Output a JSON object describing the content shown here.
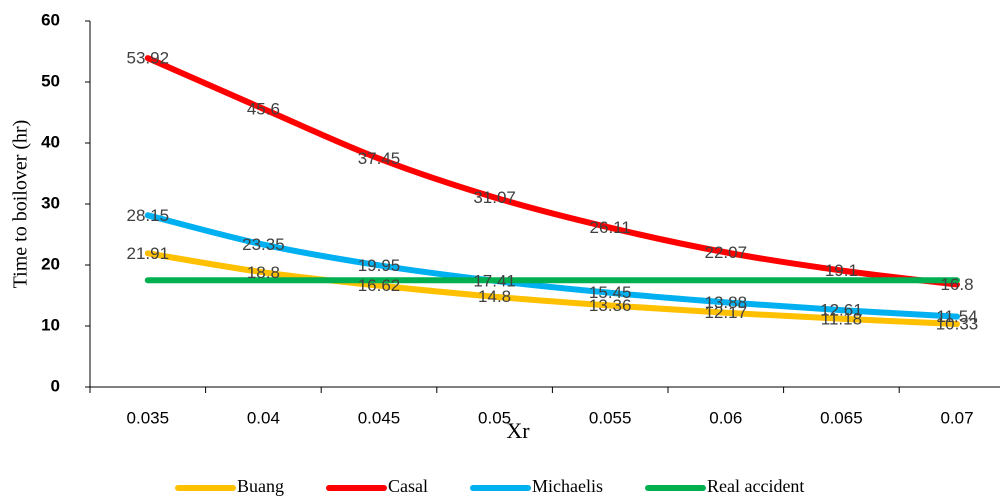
{
  "chart_data": {
    "type": "line",
    "x_label": "Xr",
    "y_label": "Time to boilover (hr)",
    "categories": [
      "0.035",
      "0.04",
      "0.045",
      "0.05",
      "0.055",
      "0.06",
      "0.065",
      "0.07"
    ],
    "series": [
      {
        "name": "Buang",
        "color": "#ffc000",
        "values": [
          21.91,
          18.8,
          16.62,
          14.8,
          13.36,
          12.17,
          11.18,
          10.33
        ],
        "data_labels": true
      },
      {
        "name": "Casal",
        "color": "#ff0000",
        "values": [
          53.92,
          45.6,
          37.45,
          31.07,
          26.11,
          22.07,
          19.1,
          16.8
        ],
        "data_labels": true
      },
      {
        "name": "Michaelis",
        "color": "#00b0f0",
        "values": [
          28.15,
          23.35,
          19.95,
          17.41,
          15.45,
          13.88,
          12.61,
          11.54
        ],
        "data_labels": true
      },
      {
        "name": "Real accident",
        "color": "#00b050",
        "values": [
          17.5,
          17.5,
          17.5,
          17.5,
          17.5,
          17.5,
          17.5,
          17.5
        ],
        "data_labels": false
      }
    ],
    "ylim": [
      0,
      60
    ],
    "yticks": [
      0,
      10,
      20,
      30,
      40,
      50,
      60
    ],
    "grid": false,
    "legend": "bottom"
  }
}
